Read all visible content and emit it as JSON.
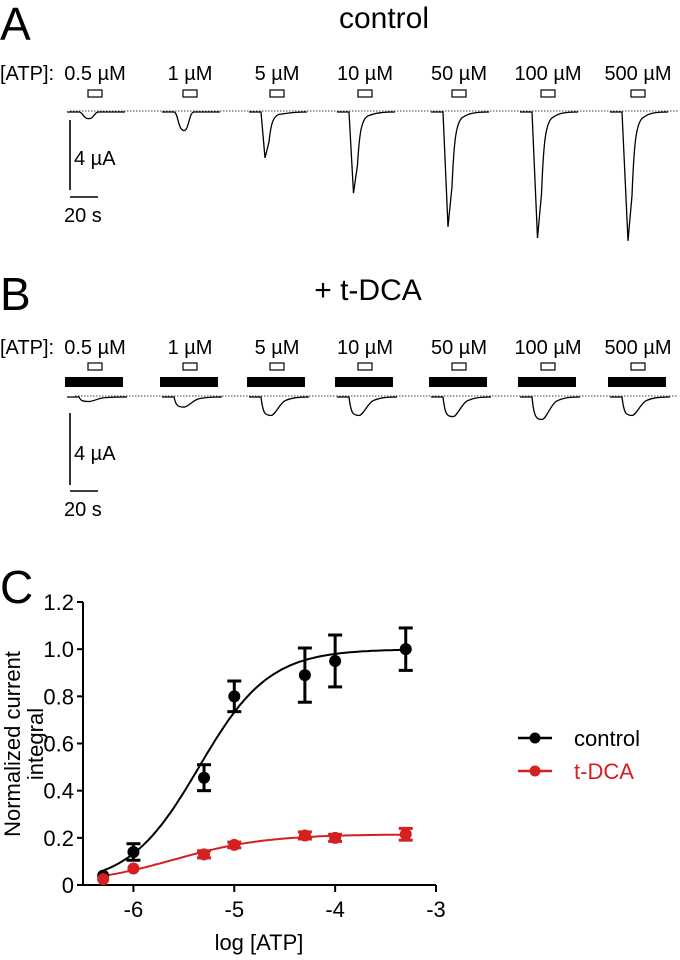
{
  "panel_a": {
    "letter": "A",
    "title": "control",
    "atp_label": "[ATP]:",
    "concentrations": [
      "0.5 µM",
      "1 µM",
      "5 µM",
      "10 µM",
      "50 µM",
      "100 µM",
      "500 µM"
    ],
    "relative_peak_amplitude": [
      0.12,
      0.33,
      0.82,
      1.45,
      2.05,
      2.25,
      2.3
    ],
    "scale_current": "4 µA",
    "scale_time": "20 s"
  },
  "panel_b": {
    "letter": "B",
    "title": "+ t-DCA",
    "atp_label": "[ATP]:",
    "concentrations": [
      "0.5 µM",
      "1 µM",
      "5 µM",
      "10 µM",
      "50 µM",
      "100 µM",
      "500 µM"
    ],
    "relative_peak_amplitude": [
      0.08,
      0.18,
      0.33,
      0.33,
      0.35,
      0.4,
      0.33
    ],
    "scale_current": "4 µA",
    "scale_time": "20 s"
  },
  "panel_c": {
    "letter": "C"
  },
  "chart_data": {
    "type": "scatter",
    "title": "",
    "xlabel": "log [ATP]",
    "ylabel": "Normalized current integral",
    "ylabel_lines": [
      "Normalized current",
      "integral"
    ],
    "xlim": [
      -6.5,
      -3
    ],
    "ylim": [
      0,
      1.2
    ],
    "xticks": [
      -6,
      -5,
      -4,
      -3
    ],
    "xtick_labels": [
      "-6",
      "-5",
      "-4",
      "-3"
    ],
    "yticks": [
      0,
      0.2,
      0.4,
      0.6,
      0.8,
      1.0,
      1.2
    ],
    "ytick_labels": [
      "0",
      "0.2",
      "0.4",
      "0.6",
      "0.8",
      "1.0",
      "1.2"
    ],
    "grid": false,
    "legend_position": "right",
    "x": [
      -6.3,
      -6,
      -5.3,
      -5,
      -4.3,
      -4,
      -3.3
    ],
    "series": [
      {
        "name": "control",
        "color": "#000000",
        "values": [
          0.04,
          0.14,
          0.455,
          0.8,
          0.89,
          0.95,
          1.0
        ],
        "errors": [
          0.0,
          0.035,
          0.055,
          0.065,
          0.115,
          0.11,
          0.09
        ],
        "fit": {
          "type": "sigmoid",
          "bottom": 0.0,
          "top": 1.0,
          "logEC50": -5.35,
          "hill": 1.25
        }
      },
      {
        "name": "t-DCA",
        "color": "#d42020",
        "values": [
          0.025,
          0.07,
          0.13,
          0.17,
          0.21,
          0.2,
          0.215
        ],
        "errors": [
          0.0,
          0.0,
          0.015,
          0.012,
          0.015,
          0.015,
          0.025
        ],
        "fit": {
          "type": "sigmoid",
          "bottom": 0.0,
          "top": 0.215,
          "logEC50": -5.6,
          "hill": 0.95
        }
      }
    ]
  }
}
